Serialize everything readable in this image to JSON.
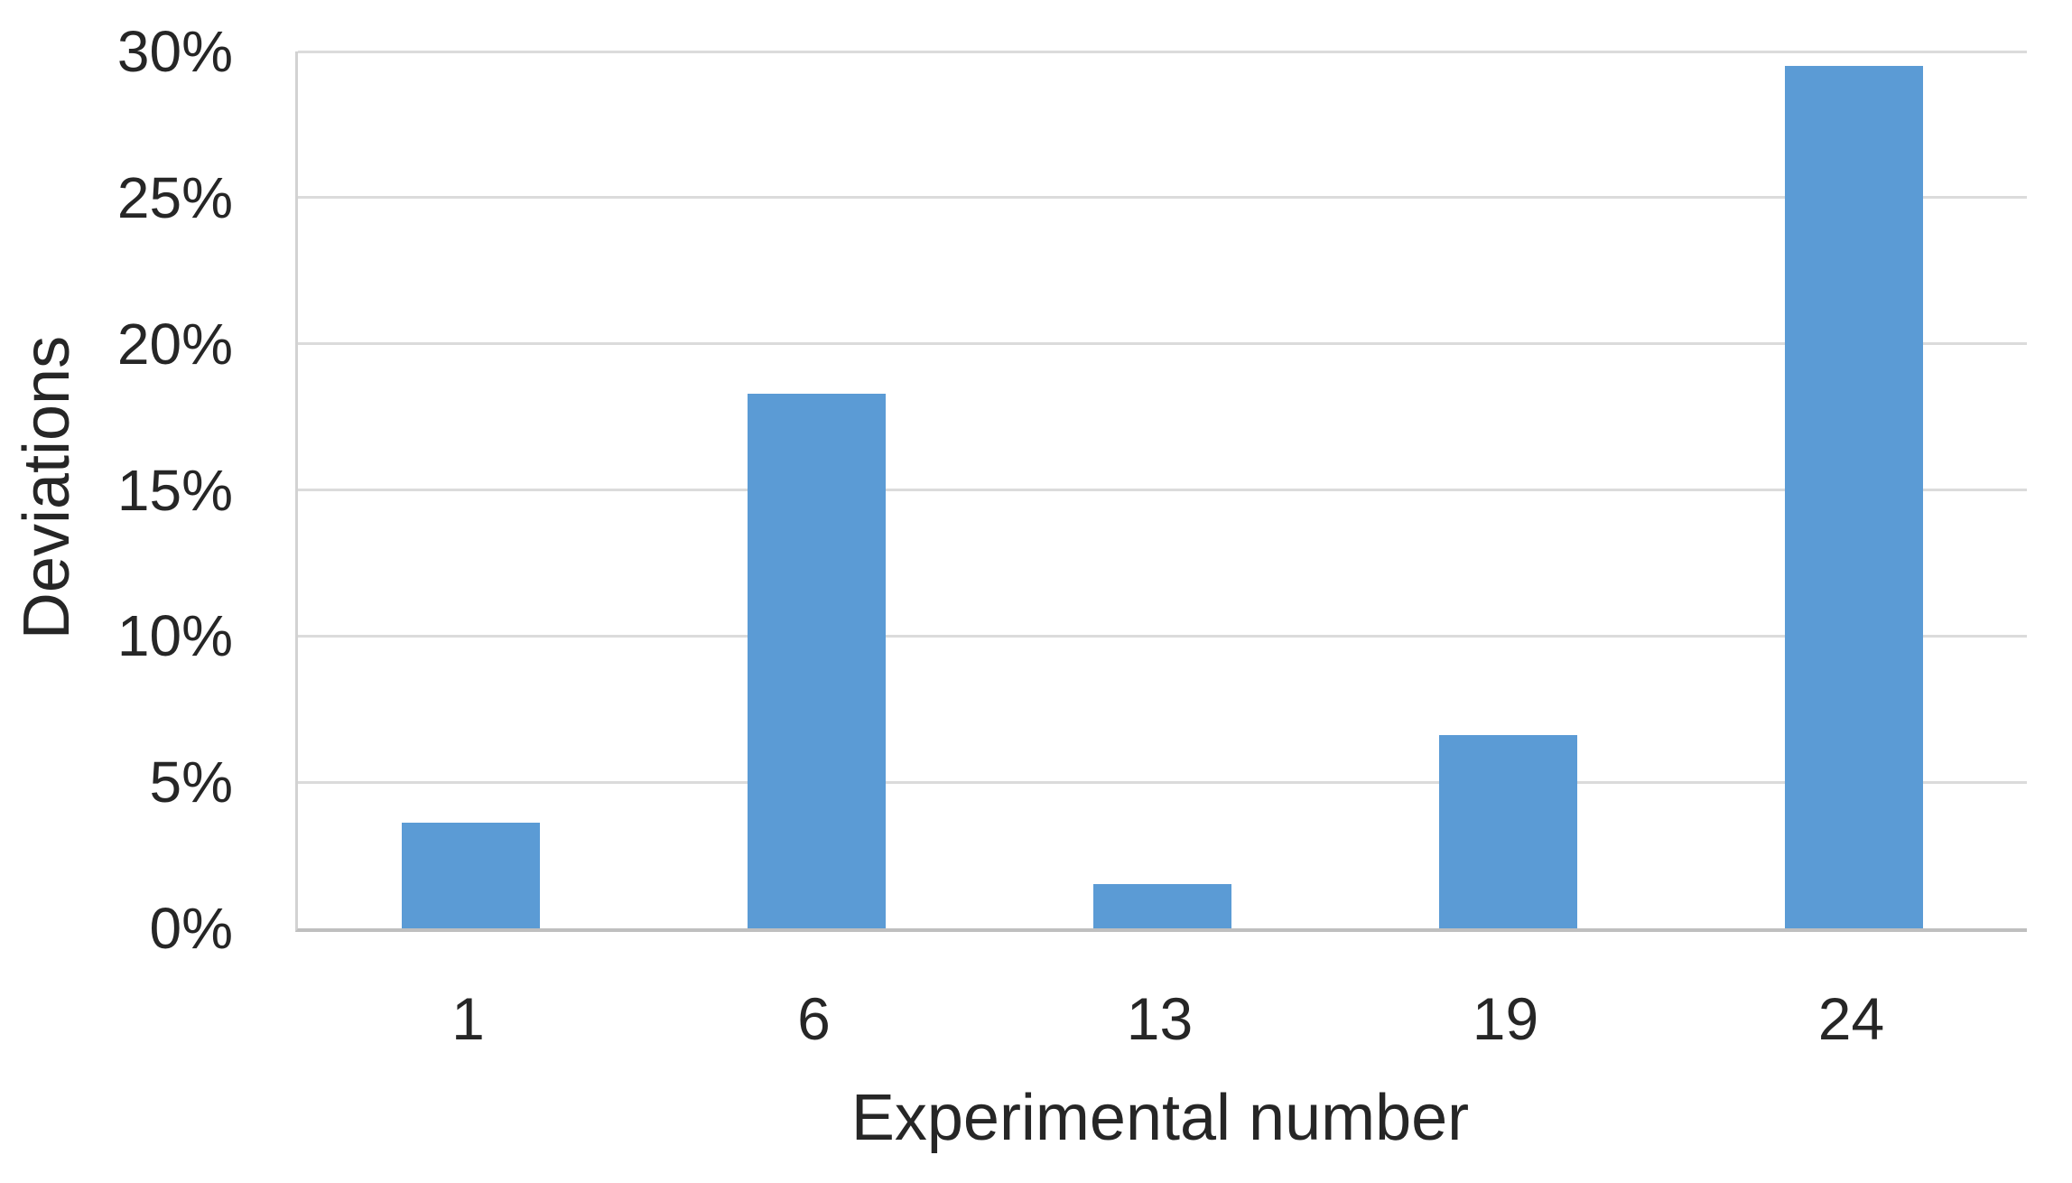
{
  "chart_data": {
    "type": "bar",
    "title": "",
    "categories": [
      "1",
      "6",
      "13",
      "19",
      "24"
    ],
    "values": [
      3.6,
      18.3,
      1.5,
      6.6,
      29.5
    ],
    "unit": "%",
    "xlabel": "Experimental number",
    "ylabel": "Deviations",
    "ylim": [
      0,
      30
    ],
    "ytick_step": 5,
    "ytick_labels": [
      "0%",
      "5%",
      "10%",
      "15%",
      "20%",
      "25%",
      "30%"
    ],
    "grid": "horizontal-only",
    "legend": "none",
    "colors": {
      "bar": "#5b9bd5",
      "gridline": "#dbdbdb",
      "axis_line": "#bfbfbf",
      "text": "#262626",
      "background": "#ffffff"
    }
  }
}
